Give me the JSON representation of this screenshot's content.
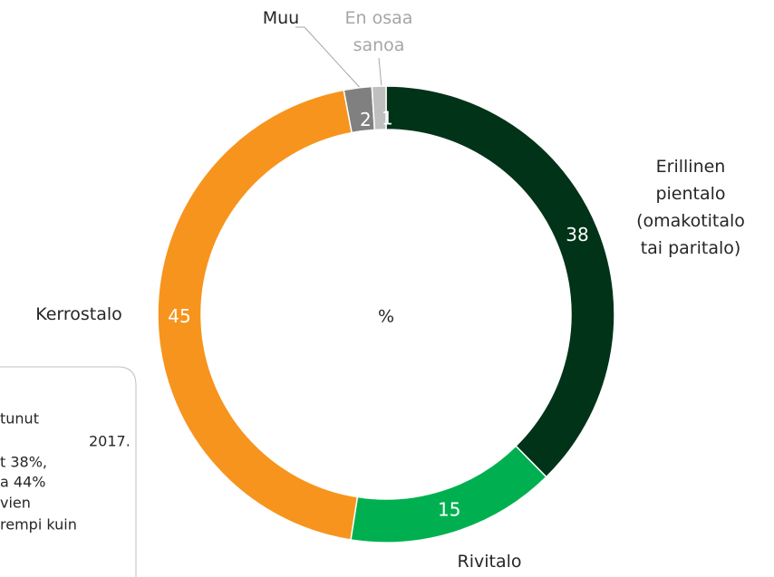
{
  "chart_data": {
    "type": "donut",
    "categories": [
      "Erillinen\npientalo\n(omakotitalo\ntai paritalo)",
      "Rivitalo",
      "Kerrostalo",
      "Muu",
      "En osaa\nsanoa"
    ],
    "values": [
      38,
      15,
      45,
      2,
      1
    ],
    "colors": [
      "#003318",
      "#00b050",
      "#f7941d",
      "#808080",
      "#bfbfbf"
    ],
    "center_label": "%"
  },
  "note_box": {
    "lines": [
      "tunut",
      "2017.",
      "t 38%,",
      "a 44%",
      "vien",
      "rempi kuin"
    ]
  }
}
